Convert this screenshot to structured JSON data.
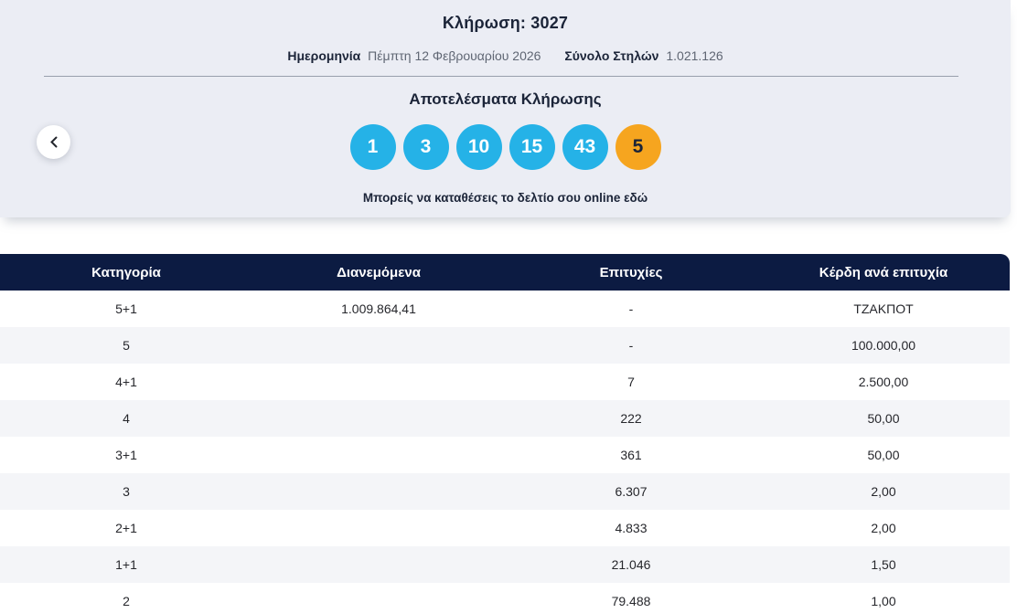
{
  "draw": {
    "title": "Κλήρωση: 3027",
    "date_label": "Ημερομηνία",
    "date_value": "Πέμπτη 12 Φεβρουαρίου 2026",
    "columns_label": "Σύνολο Στηλών",
    "columns_value": "1.021.126",
    "results_heading": "Αποτελέσματα Κλήρωσης",
    "numbers": [
      "1",
      "3",
      "10",
      "15",
      "43"
    ],
    "bonus_number": "5",
    "caption_text": "Μπορείς να καταθέσεις το δελτίο σου online ",
    "caption_link": "εδώ"
  },
  "colors": {
    "ball_blue": "#25b2e7",
    "ball_bonus_orange": "#f6a51f",
    "table_header_navy": "#0c1b42",
    "card_background": "#ebedf4"
  },
  "table": {
    "headers": [
      "Κατηγορία",
      "Διανεμόμενα",
      "Επιτυχίες",
      "Κέρδη ανά επιτυχία"
    ],
    "rows": [
      [
        "5+1",
        "1.009.864,41",
        "-",
        "ΤΖΑΚΠΟΤ"
      ],
      [
        "5",
        "",
        "-",
        "100.000,00"
      ],
      [
        "4+1",
        "",
        "7",
        "2.500,00"
      ],
      [
        "4",
        "",
        "222",
        "50,00"
      ],
      [
        "3+1",
        "",
        "361",
        "50,00"
      ],
      [
        "3",
        "",
        "6.307",
        "2,00"
      ],
      [
        "2+1",
        "",
        "4.833",
        "2,00"
      ],
      [
        "1+1",
        "",
        "21.046",
        "1,50"
      ],
      [
        "2",
        "",
        "79.488",
        "1,00"
      ]
    ]
  }
}
